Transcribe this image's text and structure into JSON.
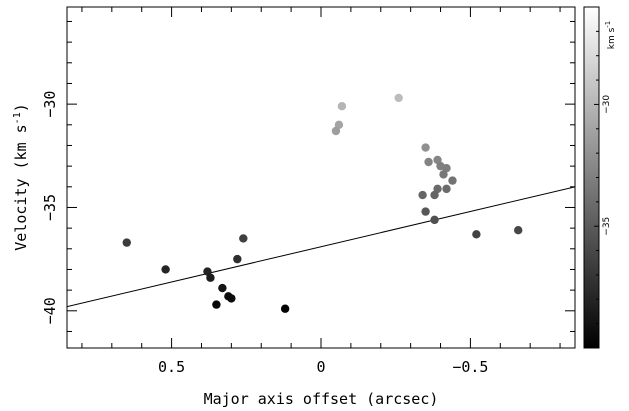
{
  "chart_data": {
    "type": "scatter",
    "title": "",
    "xlabel": "Major axis offset (arcsec)",
    "ylabel": "Velocity (km s",
    "ylabel_sup": "-1",
    "ylabel_close": ")",
    "xlim": [
      0.85,
      -0.85
    ],
    "ylim": [
      -41.8,
      -25.3
    ],
    "x_ticks": [
      0.5,
      0,
      -0.5
    ],
    "x_tick_labels": [
      "0.5",
      "0",
      "−0.5"
    ],
    "y_ticks": [
      -30,
      -35,
      -40
    ],
    "y_tick_labels": [
      "−30",
      "−35",
      "−40"
    ],
    "grid": false,
    "fit_line": {
      "x": [
        0.85,
        -0.85
      ],
      "y": [
        -39.8,
        -34.0
      ]
    },
    "points": [
      {
        "x": 0.65,
        "y": -36.7
      },
      {
        "x": 0.52,
        "y": -38.0
      },
      {
        "x": 0.38,
        "y": -38.1
      },
      {
        "x": 0.37,
        "y": -38.4
      },
      {
        "x": 0.33,
        "y": -38.9
      },
      {
        "x": 0.31,
        "y": -39.3
      },
      {
        "x": 0.3,
        "y": -39.4
      },
      {
        "x": 0.35,
        "y": -39.7
      },
      {
        "x": 0.28,
        "y": -37.5
      },
      {
        "x": 0.26,
        "y": -36.5
      },
      {
        "x": 0.12,
        "y": -39.9
      },
      {
        "x": -0.07,
        "y": -30.1
      },
      {
        "x": -0.06,
        "y": -31.0
      },
      {
        "x": -0.05,
        "y": -31.3
      },
      {
        "x": -0.26,
        "y": -29.7
      },
      {
        "x": -0.35,
        "y": -32.1
      },
      {
        "x": -0.36,
        "y": -32.8
      },
      {
        "x": -0.39,
        "y": -32.7
      },
      {
        "x": -0.4,
        "y": -33.0
      },
      {
        "x": -0.42,
        "y": -33.1
      },
      {
        "x": -0.41,
        "y": -33.4
      },
      {
        "x": -0.44,
        "y": -33.7
      },
      {
        "x": -0.39,
        "y": -34.1
      },
      {
        "x": -0.42,
        "y": -34.1
      },
      {
        "x": -0.34,
        "y": -34.4
      },
      {
        "x": -0.38,
        "y": -34.4
      },
      {
        "x": -0.35,
        "y": -35.2
      },
      {
        "x": -0.38,
        "y": -35.6
      },
      {
        "x": -0.52,
        "y": -36.3
      },
      {
        "x": -0.66,
        "y": -36.1
      }
    ],
    "colorbar": {
      "label": "km s",
      "label_sup": "-1",
      "range": [
        -40.0,
        -26.0
      ],
      "ticks": [
        -30,
        -35
      ],
      "tick_labels": [
        "−30",
        "−35"
      ],
      "colors": [
        "#000000",
        "#ffffff"
      ]
    },
    "marker_color_rule": "velocity mapped on colorbar"
  }
}
